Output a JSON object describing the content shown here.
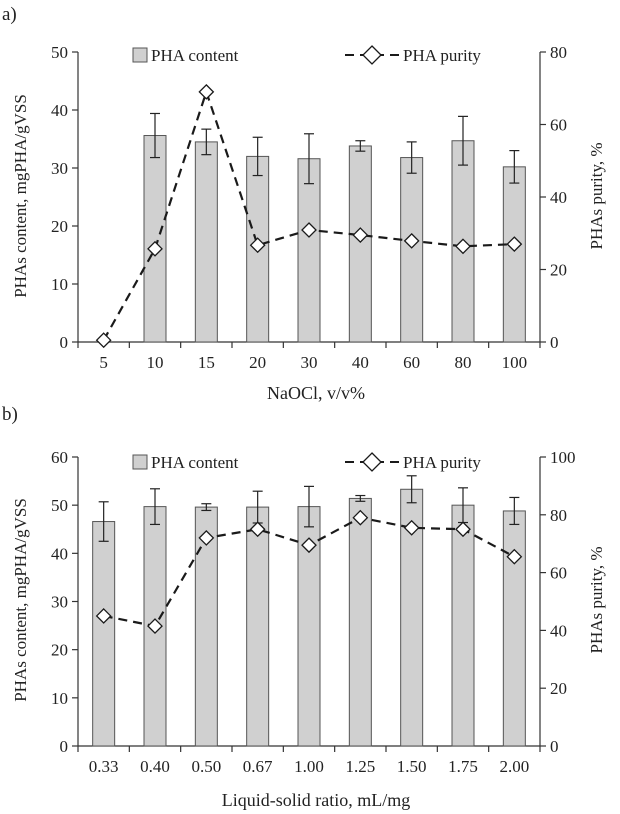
{
  "panels": [
    {
      "label": "a)",
      "legend": {
        "bar": "PHA content",
        "line": "PHA purity"
      },
      "xlabel": "NaOCl, v/v%",
      "ylabel_left": "PHAs content, mgPHA/gVSS",
      "ylabel_right": "PHAs purity, %"
    },
    {
      "label": "b)",
      "legend": {
        "bar": "PHA content",
        "line": "PHA purity"
      },
      "xlabel": "Liquid-solid ratio, mL/mg",
      "ylabel_left": "PHAs content, mgPHA/gVSS",
      "ylabel_right": "PHAs purity, %"
    }
  ],
  "chart_data": [
    {
      "type": "bar",
      "categories": [
        "5",
        "10",
        "15",
        "20",
        "30",
        "40",
        "60",
        "80",
        "100"
      ],
      "series": [
        {
          "name": "PHA content",
          "type": "bar",
          "axis": "left",
          "values": [
            0,
            35.6,
            34.5,
            32.0,
            31.6,
            33.8,
            31.8,
            34.7,
            30.2
          ],
          "errors": [
            0,
            3.8,
            2.2,
            3.3,
            4.3,
            0.9,
            2.7,
            4.2,
            2.8
          ]
        },
        {
          "name": "PHA purity",
          "type": "line",
          "axis": "right",
          "values": [
            0.5,
            25.7,
            69.0,
            26.7,
            30.9,
            29.5,
            27.9,
            26.4,
            27.0
          ]
        }
      ],
      "xlabel": "NaOCl, v/v%",
      "ylabel": "PHAs content, mgPHA/gVSS",
      "y2label": "PHAs purity, %",
      "ylim": [
        0,
        50
      ],
      "y2lim": [
        0,
        80
      ],
      "yticks": [
        0,
        10,
        20,
        30,
        40,
        50
      ],
      "y2ticks": [
        0,
        20,
        40,
        60,
        80
      ],
      "colors": {
        "bar_fill": "#d0d0d0",
        "bar_stroke": "#555555",
        "line": "#1a1a1a",
        "marker_fill": "#ffffff"
      },
      "legend_position": "top"
    },
    {
      "type": "bar",
      "categories": [
        "0.33",
        "0.40",
        "0.50",
        "0.67",
        "1.00",
        "1.25",
        "1.50",
        "1.75",
        "2.00"
      ],
      "series": [
        {
          "name": "PHA content",
          "type": "bar",
          "axis": "left",
          "values": [
            46.6,
            49.7,
            49.6,
            49.6,
            49.7,
            51.4,
            53.3,
            50.0,
            48.8
          ],
          "errors": [
            4.1,
            3.7,
            0.7,
            3.3,
            4.2,
            0.6,
            2.8,
            3.6,
            2.8
          ]
        },
        {
          "name": "PHA purity",
          "type": "line",
          "axis": "right",
          "values": [
            45.0,
            41.5,
            72.0,
            75.0,
            69.5,
            79.0,
            75.5,
            75.0,
            65.5
          ]
        }
      ],
      "xlabel": "Liquid-solid ratio, mL/mg",
      "ylabel": "PHAs content, mgPHA/gVSS",
      "y2label": "PHAs purity, %",
      "ylim": [
        0,
        60
      ],
      "y2lim": [
        0,
        100
      ],
      "yticks": [
        0,
        10,
        20,
        30,
        40,
        50,
        60
      ],
      "y2ticks": [
        0,
        20,
        40,
        60,
        80,
        100
      ],
      "colors": {
        "bar_fill": "#d0d0d0",
        "bar_stroke": "#555555",
        "line": "#1a1a1a",
        "marker_fill": "#ffffff"
      },
      "legend_position": "top"
    }
  ]
}
